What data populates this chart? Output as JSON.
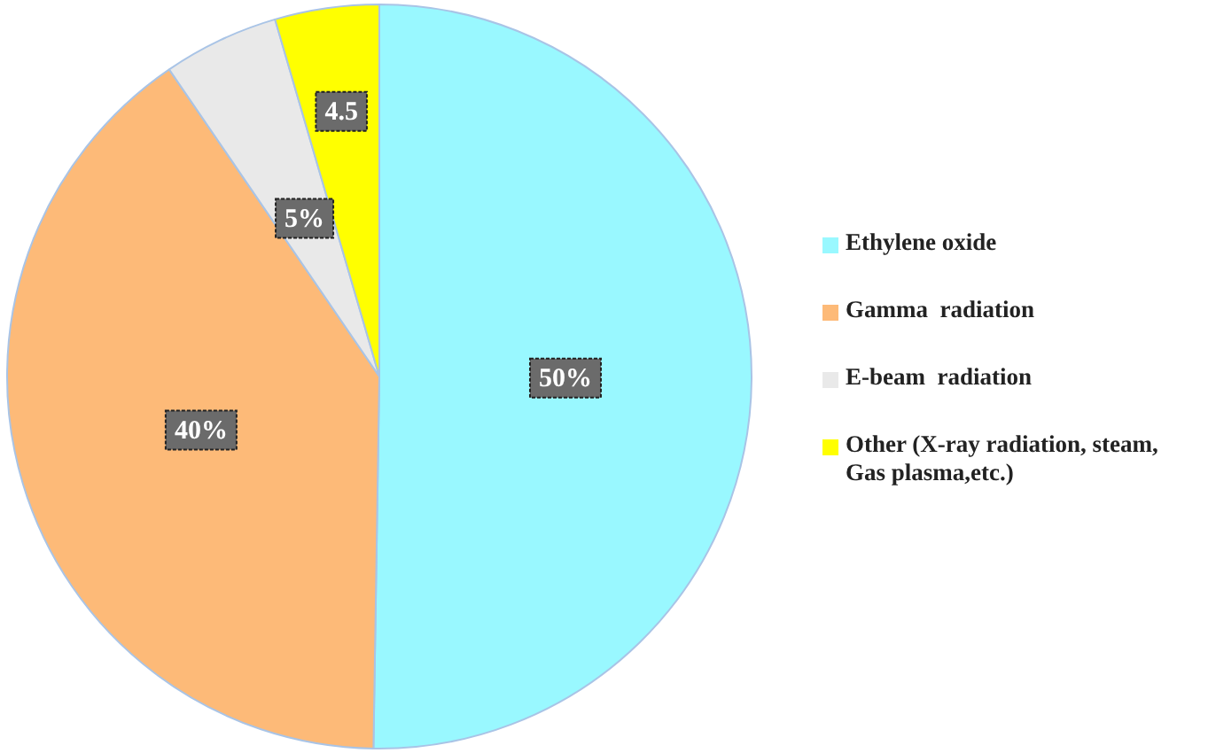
{
  "chart_data": {
    "type": "pie",
    "categories": [
      "Ethylene oxide",
      "Gamma  radiation",
      "E-beam  radiation",
      "Other (X-ray radiation, steam, Gas plasma,etc.)"
    ],
    "values": [
      50,
      40,
      5,
      4.5
    ],
    "colors": [
      "#99f8ff",
      "#fdba78",
      "#e9e9e9",
      "#ffff00"
    ],
    "value_labels": [
      "50%",
      "40%",
      "5%",
      "4.5"
    ],
    "legend": "right"
  }
}
